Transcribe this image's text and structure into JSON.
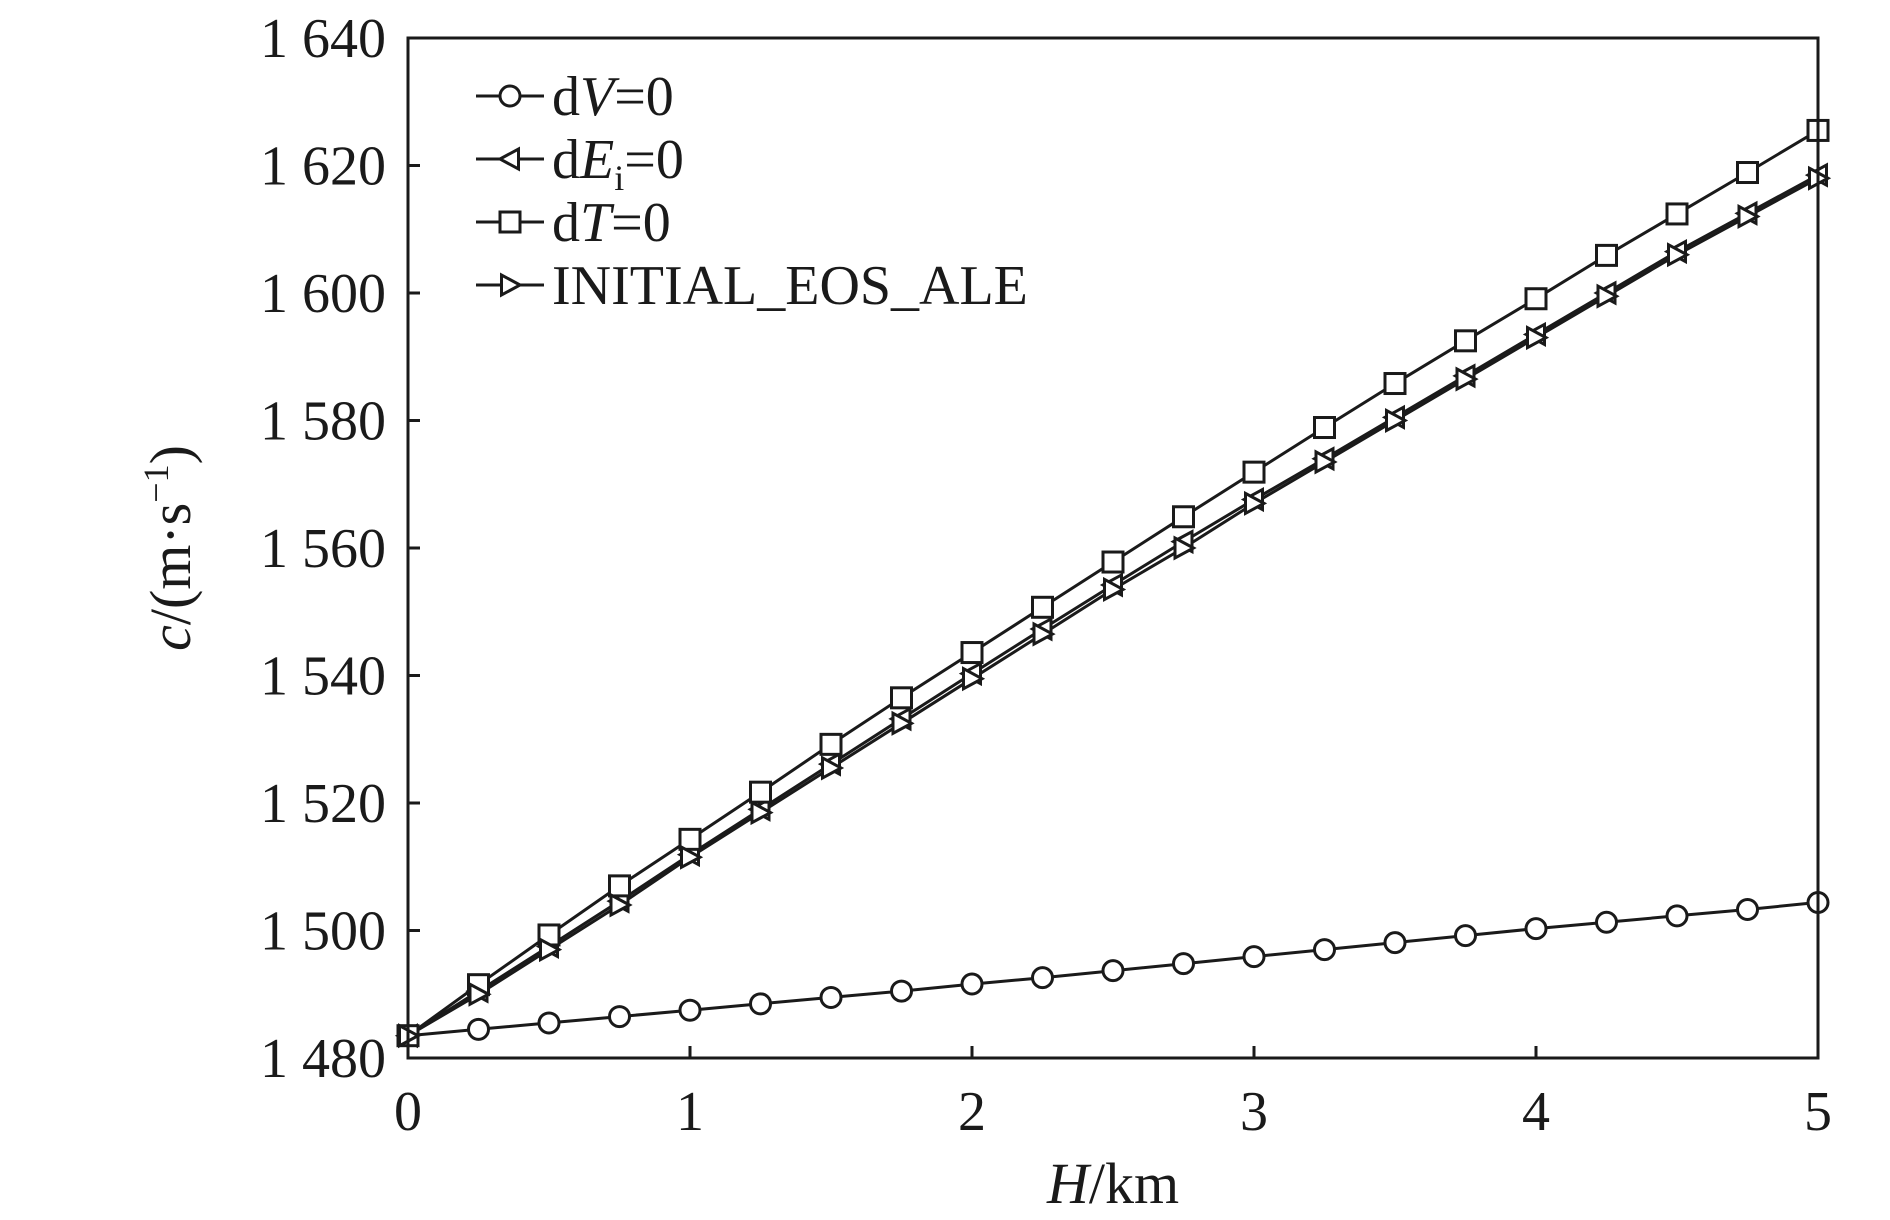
{
  "chart_data": {
    "type": "line",
    "xlabel": {
      "italic": "H",
      "rest": "/km"
    },
    "ylabel": {
      "italic": "c",
      "rest": "/(m·s",
      "sup": "−1",
      "close": ")"
    },
    "xlim": [
      0,
      5
    ],
    "ylim": [
      1480,
      1640
    ],
    "xticks": [
      0,
      1,
      2,
      3,
      4,
      5
    ],
    "xtick_labels": [
      "0",
      "1",
      "2",
      "3",
      "4",
      "5"
    ],
    "yticks": [
      1480,
      1500,
      1520,
      1540,
      1560,
      1580,
      1600,
      1620,
      1640
    ],
    "ytick_labels": [
      "1 480",
      "1 500",
      "1 520",
      "1 540",
      "1 560",
      "1 580",
      "1 600",
      "1 620",
      "1 640"
    ],
    "grid": false,
    "legend_position": "top-left",
    "line_color": "#1a1a1a",
    "x": [
      0,
      0.25,
      0.5,
      0.75,
      1,
      1.25,
      1.5,
      1.75,
      2,
      2.25,
      2.5,
      2.75,
      3,
      3.25,
      3.5,
      3.75,
      4,
      4.25,
      4.5,
      4.75,
      5
    ],
    "series": [
      {
        "name": "dV=0",
        "legend": {
          "prefix": "d",
          "italic": "V",
          "sub": "",
          "suffix": "=0"
        },
        "marker": "circle",
        "values": [
          1483.5,
          1484.5,
          1485.5,
          1486.5,
          1487.5,
          1488.5,
          1489.5,
          1490.5,
          1491.6,
          1492.6,
          1493.7,
          1494.8,
          1495.9,
          1497.0,
          1498.1,
          1499.2,
          1500.3,
          1501.3,
          1502.3,
          1503.3,
          1504.4
        ]
      },
      {
        "name": "dEi=0",
        "legend": {
          "prefix": "d",
          "italic": "E",
          "sub": "i",
          "suffix": "=0"
        },
        "marker": "triangle-left",
        "values": [
          1483.5,
          1490.5,
          1497.5,
          1504.6,
          1511.9,
          1519.0,
          1526.1,
          1533.2,
          1540.3,
          1547.3,
          1554.2,
          1561.0,
          1567.6,
          1574.0,
          1580.5,
          1587.0,
          1593.5,
          1600.0,
          1606.5,
          1612.5,
          1618.5
        ]
      },
      {
        "name": "dT=0",
        "legend": {
          "prefix": "d",
          "italic": "T",
          "sub": "",
          "suffix": "=0"
        },
        "marker": "square",
        "values": [
          1483.5,
          1491.5,
          1499.3,
          1507.0,
          1514.3,
          1521.7,
          1529.2,
          1536.5,
          1543.6,
          1550.7,
          1557.8,
          1564.9,
          1571.9,
          1578.9,
          1585.8,
          1592.5,
          1599.1,
          1605.9,
          1612.4,
          1618.9,
          1625.5
        ]
      },
      {
        "name": "INITIAL_EOS_ALE",
        "legend": {
          "prefix": "INITIAL_EOS_ALE",
          "italic": "",
          "sub": "",
          "suffix": ""
        },
        "marker": "triangle-right",
        "values": [
          1483.5,
          1490.0,
          1497.0,
          1504.0,
          1511.5,
          1518.5,
          1525.5,
          1532.5,
          1539.5,
          1546.5,
          1553.5,
          1560.0,
          1567.0,
          1573.5,
          1580.0,
          1586.5,
          1593.0,
          1599.5,
          1606.0,
          1612.0,
          1618.0
        ]
      }
    ]
  }
}
